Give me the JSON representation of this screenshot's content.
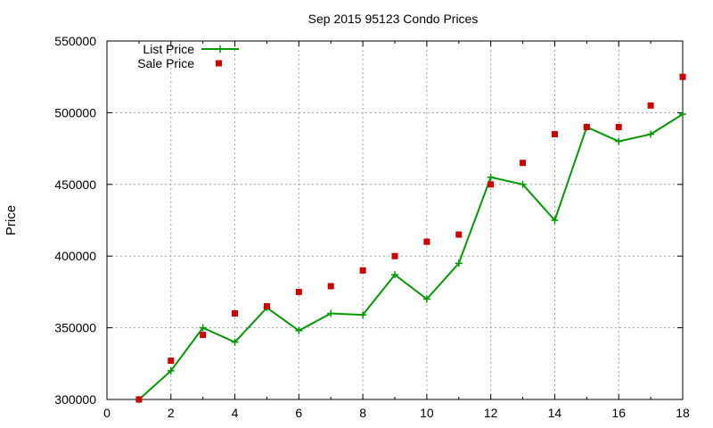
{
  "chart_data": {
    "type": "line",
    "title": "Sep 2015 95123 Condo Prices",
    "xlabel": "",
    "ylabel": "Price",
    "xlim": [
      0,
      18
    ],
    "ylim": [
      300000,
      550000
    ],
    "x_ticks": [
      0,
      2,
      4,
      6,
      8,
      10,
      12,
      14,
      16,
      18
    ],
    "y_ticks": [
      300000,
      350000,
      400000,
      450000,
      500000,
      550000
    ],
    "x_tick_labels": [
      "0",
      "2",
      "4",
      "6",
      "8",
      "10",
      "12",
      "14",
      "16",
      "18"
    ],
    "y_tick_labels": [
      "300000",
      "350000",
      "400000",
      "450000",
      "500000",
      "550000"
    ],
    "grid": true,
    "legend_position": "top-left",
    "series": [
      {
        "name": "List Price",
        "style": "line+cross",
        "color": "#009900",
        "x": [
          1,
          2,
          3,
          4,
          5,
          6,
          7,
          8,
          9,
          10,
          11,
          12,
          13,
          14,
          15,
          16,
          17,
          18
        ],
        "y": [
          299900,
          320000,
          350000,
          340000,
          364000,
          348000,
          360000,
          359000,
          387000,
          370000,
          395000,
          455000,
          450000,
          425000,
          490000,
          480000,
          485000,
          499000
        ]
      },
      {
        "name": "Sale Price",
        "style": "square",
        "color": "#cc0000",
        "x": [
          1,
          2,
          3,
          4,
          5,
          6,
          7,
          8,
          9,
          10,
          11,
          12,
          13,
          14,
          15,
          16,
          17,
          18
        ],
        "y": [
          300000,
          327000,
          345000,
          360000,
          365000,
          375000,
          379000,
          390000,
          400000,
          410000,
          415000,
          450000,
          465000,
          485000,
          490000,
          490000,
          505000,
          525000
        ]
      }
    ]
  }
}
